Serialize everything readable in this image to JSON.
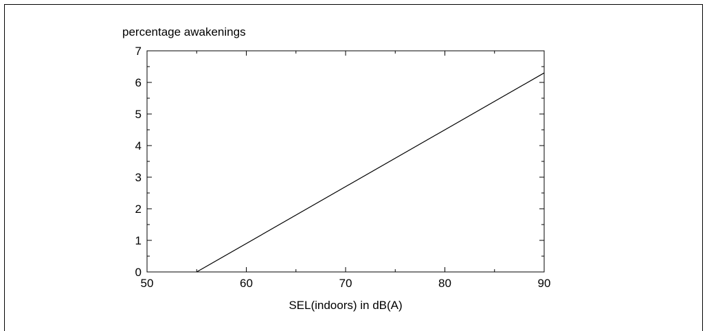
{
  "chart_data": {
    "type": "line",
    "title": "",
    "ylabel": "percentage awakenings",
    "xlabel": "SEL(indoors) in dB(A)",
    "xlim": [
      50,
      90
    ],
    "ylim": [
      0,
      7
    ],
    "x_ticks": [
      50,
      60,
      70,
      80,
      90
    ],
    "y_ticks": [
      0,
      1,
      2,
      3,
      4,
      5,
      6,
      7
    ],
    "x_tick_labels": [
      "50",
      "60",
      "70",
      "80",
      "90"
    ],
    "y_tick_labels": [
      "0",
      "1",
      "2",
      "3",
      "4",
      "5",
      "6",
      "7"
    ],
    "grid": false,
    "legend": "none",
    "series": [
      {
        "x": [
          55,
          90
        ],
        "y": [
          0,
          6.3
        ]
      }
    ],
    "line_color": "#000000"
  }
}
